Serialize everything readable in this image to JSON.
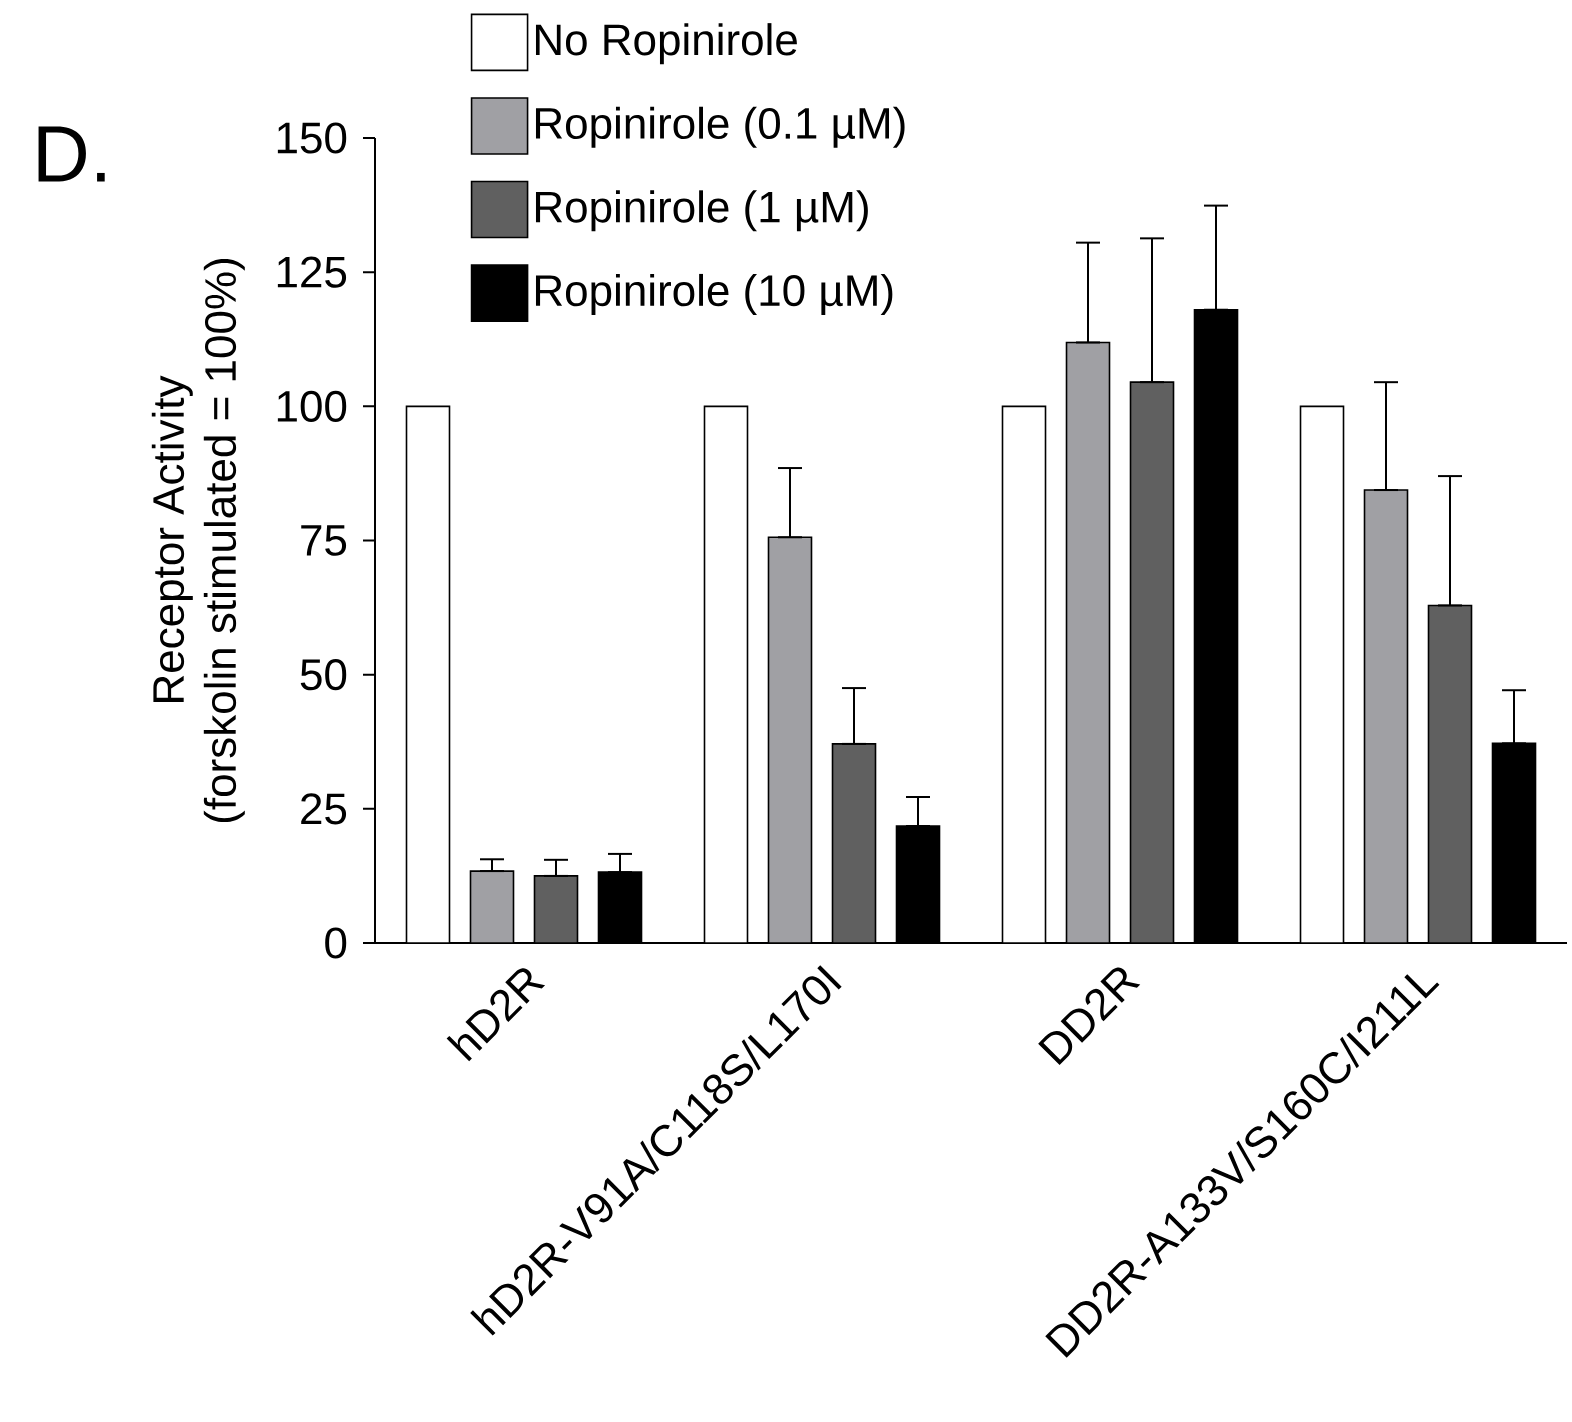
{
  "chart_data": {
    "type": "bar",
    "ylabel": "Receptor Activity (forskolin stimulated = 100%)",
    "categories": [
      "hD2R",
      "hD2R-V91A/C118S/L170I",
      "DD2R",
      "DD2R-A133V/S160C/I211L"
    ],
    "ylim": [
      0,
      150
    ],
    "yticks": [
      0,
      25,
      50,
      75,
      100,
      125,
      150
    ],
    "legend": "top left",
    "annotations": [
      "D."
    ],
    "series": [
      {
        "name": "No Ropinirole",
        "color": "#ffffff",
        "values": [
          100,
          100,
          100,
          100
        ],
        "errors": [
          null,
          null,
          null,
          null
        ]
      },
      {
        "name": "Ropinirole (0.1 µM)",
        "color": "#a0a0a4",
        "values": [
          13.4,
          75.6,
          111.9,
          84.4
        ],
        "errors": [
          [
            13.4,
            15.6
          ],
          [
            75.6,
            88.5
          ],
          [
            111.9,
            130.5
          ],
          [
            84.4,
            104.5
          ]
        ]
      },
      {
        "name": "Ropinirole (1 µM)",
        "color": "#606060",
        "values": [
          12.5,
          37.1,
          104.5,
          62.9
        ],
        "errors": [
          [
            12.5,
            15.5
          ],
          [
            37.1,
            47.5
          ],
          [
            104.5,
            131.3
          ],
          [
            62.9,
            87
          ]
        ]
      },
      {
        "name": "Ropinirole (10 µM)",
        "color": "#000000",
        "values": [
          13.2,
          21.8,
          118,
          37.2
        ],
        "errors": [
          [
            13.2,
            16.6
          ],
          [
            21.8,
            27.2
          ],
          [
            118,
            137.4
          ],
          [
            37.2,
            47.1
          ]
        ]
      }
    ]
  }
}
